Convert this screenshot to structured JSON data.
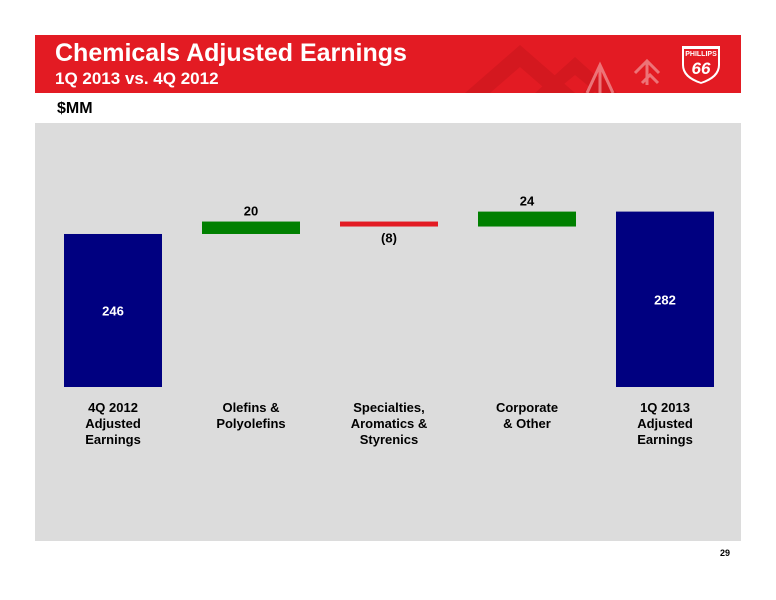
{
  "header": {
    "title": "Chemicals Adjusted Earnings",
    "subtitle": "1Q 2013 vs. 4Q 2012",
    "logo_text_top": "PHILLIPS",
    "logo_text_number": "66"
  },
  "units_label": "$MM",
  "page_number": "29",
  "colors": {
    "header_red": "#e31b23",
    "panel_gray": "#dcdcdc",
    "total_bar": "#000080",
    "increase_bar": "#008000",
    "decrease_bar": "#e31b23"
  },
  "chart_data": {
    "type": "bar",
    "subtype": "waterfall",
    "categories": [
      [
        "4Q 2012",
        "Adjusted",
        "Earnings"
      ],
      [
        "Olefins &",
        "Polyolefins"
      ],
      [
        "Specialties,",
        "Aromatics &",
        "Styrenics"
      ],
      [
        "Corporate",
        "& Other"
      ],
      [
        "1Q 2013",
        "Adjusted",
        "Earnings"
      ]
    ],
    "values": [
      246,
      20,
      -8,
      24,
      282
    ],
    "kinds": [
      "total",
      "delta",
      "delta",
      "delta",
      "total"
    ],
    "data_labels": [
      "246",
      "20",
      "(8)",
      "24",
      "282"
    ],
    "ylim": [
      0,
      390
    ],
    "grid": false,
    "legend": "none"
  }
}
